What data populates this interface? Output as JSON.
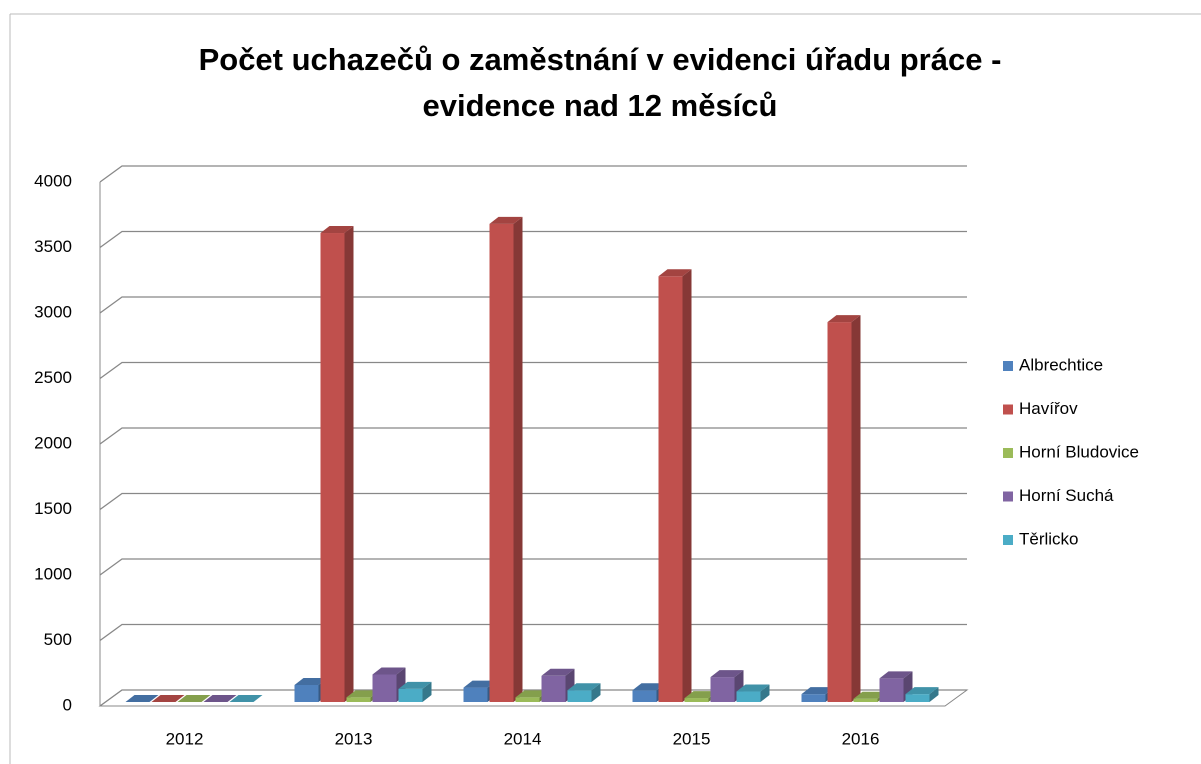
{
  "chart_data": {
    "type": "bar3d",
    "title": [
      "Počet uchazečů o zaměstnání v evidenci úřadu práce -",
      "evidence nad 12 měsíců"
    ],
    "categories": [
      "2012",
      "2013",
      "2014",
      "2015",
      "2016"
    ],
    "series": [
      {
        "name": "Albrechtice",
        "color": "#4f81bd",
        "values": [
          0,
          130,
          110,
          90,
          60
        ]
      },
      {
        "name": "Havířov",
        "color": "#c0504d",
        "values": [
          0,
          3580,
          3650,
          3250,
          2900
        ]
      },
      {
        "name": "Horní Bludovice",
        "color": "#9bbb59",
        "values": [
          0,
          35,
          35,
          30,
          25
        ]
      },
      {
        "name": "Horní Suchá",
        "color": "#8064a2",
        "values": [
          0,
          210,
          200,
          190,
          180
        ]
      },
      {
        "name": "Těrlicko",
        "color": "#4bacc6",
        "values": [
          0,
          100,
          90,
          80,
          60
        ]
      }
    ],
    "ylim": [
      0,
      4000
    ],
    "yticks": [
      0,
      500,
      1000,
      1500,
      2000,
      2500,
      3000,
      3500,
      4000
    ],
    "grid": true,
    "legend": "right"
  }
}
